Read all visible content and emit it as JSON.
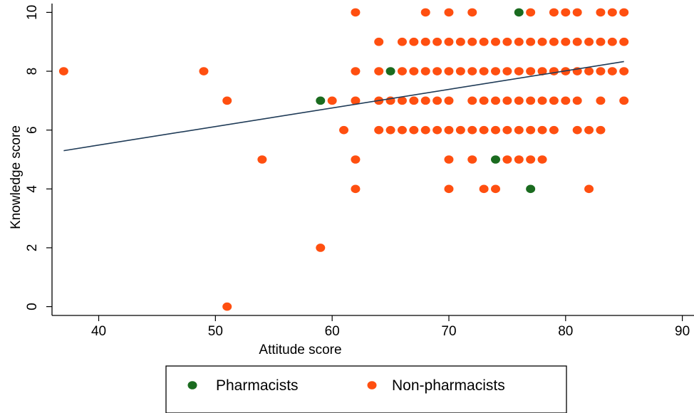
{
  "chart_data": {
    "type": "scatter",
    "xlabel": "Attitude score",
    "ylabel": "Knowledge score",
    "xlim": [
      36,
      91
    ],
    "ylim": [
      -0.3,
      10.3
    ],
    "xticks": [
      40,
      50,
      60,
      70,
      80,
      90
    ],
    "yticks": [
      0,
      2,
      4,
      6,
      8,
      10
    ],
    "grid": false,
    "legend_position": "bottom",
    "series": [
      {
        "name": "Pharmacists",
        "color": "#1a6b1f",
        "points": [
          [
            76,
            10
          ],
          [
            65,
            8
          ],
          [
            59,
            7
          ],
          [
            74,
            5
          ],
          [
            77,
            4
          ]
        ]
      },
      {
        "name": "Non-pharmacists",
        "color": "#ff4f10",
        "points": [
          [
            62,
            10
          ],
          [
            68,
            10
          ],
          [
            70,
            10
          ],
          [
            72,
            10
          ],
          [
            77,
            10
          ],
          [
            79,
            10
          ],
          [
            80,
            10
          ],
          [
            81,
            10
          ],
          [
            83,
            10
          ],
          [
            84,
            10
          ],
          [
            85,
            10
          ],
          [
            64,
            9
          ],
          [
            66,
            9
          ],
          [
            67,
            9
          ],
          [
            68,
            9
          ],
          [
            69,
            9
          ],
          [
            70,
            9
          ],
          [
            71,
            9
          ],
          [
            72,
            9
          ],
          [
            73,
            9
          ],
          [
            74,
            9
          ],
          [
            75,
            9
          ],
          [
            76,
            9
          ],
          [
            77,
            9
          ],
          [
            78,
            9
          ],
          [
            79,
            9
          ],
          [
            80,
            9
          ],
          [
            81,
            9
          ],
          [
            82,
            9
          ],
          [
            83,
            9
          ],
          [
            84,
            9
          ],
          [
            85,
            9
          ],
          [
            37,
            8
          ],
          [
            49,
            8
          ],
          [
            62,
            8
          ],
          [
            64,
            8
          ],
          [
            66,
            8
          ],
          [
            67,
            8
          ],
          [
            68,
            8
          ],
          [
            69,
            8
          ],
          [
            70,
            8
          ],
          [
            71,
            8
          ],
          [
            72,
            8
          ],
          [
            73,
            8
          ],
          [
            74,
            8
          ],
          [
            75,
            8
          ],
          [
            76,
            8
          ],
          [
            77,
            8
          ],
          [
            78,
            8
          ],
          [
            79,
            8
          ],
          [
            80,
            8
          ],
          [
            81,
            8
          ],
          [
            82,
            8
          ],
          [
            83,
            8
          ],
          [
            84,
            8
          ],
          [
            85,
            8
          ],
          [
            51,
            7
          ],
          [
            60,
            7
          ],
          [
            62,
            7
          ],
          [
            64,
            7
          ],
          [
            65,
            7
          ],
          [
            66,
            7
          ],
          [
            67,
            7
          ],
          [
            68,
            7
          ],
          [
            69,
            7
          ],
          [
            70,
            7
          ],
          [
            72,
            7
          ],
          [
            73,
            7
          ],
          [
            74,
            7
          ],
          [
            75,
            7
          ],
          [
            76,
            7
          ],
          [
            77,
            7
          ],
          [
            78,
            7
          ],
          [
            79,
            7
          ],
          [
            80,
            7
          ],
          [
            81,
            7
          ],
          [
            83,
            7
          ],
          [
            85,
            7
          ],
          [
            61,
            6
          ],
          [
            64,
            6
          ],
          [
            65,
            6
          ],
          [
            66,
            6
          ],
          [
            67,
            6
          ],
          [
            68,
            6
          ],
          [
            69,
            6
          ],
          [
            70,
            6
          ],
          [
            71,
            6
          ],
          [
            72,
            6
          ],
          [
            73,
            6
          ],
          [
            74,
            6
          ],
          [
            75,
            6
          ],
          [
            76,
            6
          ],
          [
            77,
            6
          ],
          [
            78,
            6
          ],
          [
            79,
            6
          ],
          [
            81,
            6
          ],
          [
            82,
            6
          ],
          [
            83,
            6
          ],
          [
            54,
            5
          ],
          [
            62,
            5
          ],
          [
            70,
            5
          ],
          [
            72,
            5
          ],
          [
            75,
            5
          ],
          [
            76,
            5
          ],
          [
            77,
            5
          ],
          [
            78,
            5
          ],
          [
            62,
            4
          ],
          [
            70,
            4
          ],
          [
            73,
            4
          ],
          [
            74,
            4
          ],
          [
            82,
            4
          ],
          [
            59,
            2
          ],
          [
            51,
            0
          ]
        ]
      }
    ],
    "fit_line": {
      "type": "linear",
      "color": "#1f3b57",
      "points": [
        [
          37,
          5.3
        ],
        [
          85,
          8.33
        ]
      ]
    }
  }
}
